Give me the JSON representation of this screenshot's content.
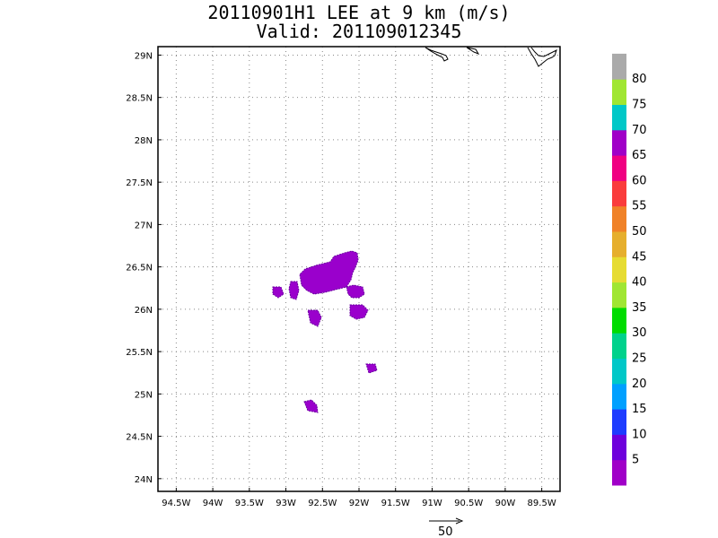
{
  "title_line1": "20110901H1 LEE at 9 km (m/s)",
  "title_line2": "Valid: 201109012345",
  "map": {
    "lat_labels": [
      "29N",
      "28.5N",
      "28N",
      "27.5N",
      "27N",
      "26.5N",
      "26N",
      "25.5N",
      "25N",
      "24.5N",
      "24N"
    ],
    "lat_values": [
      29,
      28.5,
      28,
      27.5,
      27,
      26.5,
      26,
      25.5,
      25,
      24.5,
      24
    ],
    "lon_labels": [
      "94.5W",
      "94W",
      "93.5W",
      "93W",
      "92.5W",
      "92W",
      "91.5W",
      "91W",
      "90.5W",
      "90W",
      "89.5W"
    ],
    "lon_values": [
      -94.5,
      -94,
      -93.5,
      -93,
      -92.5,
      -92,
      -91.5,
      -91,
      -90.5,
      -90,
      -89.5
    ],
    "lon_range": [
      -94.75,
      -89.25
    ],
    "lat_range": [
      23.85,
      29.1
    ],
    "grid": "dotted",
    "patch_color": "#9a00cc",
    "coast_color": "#000000"
  },
  "colorbar": {
    "labels": [
      "5",
      "10",
      "15",
      "20",
      "25",
      "30",
      "35",
      "40",
      "45",
      "50",
      "55",
      "60",
      "65",
      "70",
      "75",
      "80"
    ],
    "colors": [
      "#a000c8",
      "#6e00dc",
      "#1e3cff",
      "#00a0ff",
      "#00c8c8",
      "#00d28c",
      "#00dc00",
      "#a0e632",
      "#e6dc32",
      "#e6af2d",
      "#f08228",
      "#fa3c3c",
      "#f00082",
      "#a000c8",
      "#00c8c8",
      "#a0e632",
      "#aaaaaa"
    ]
  },
  "vector_key": {
    "label": "50"
  }
}
